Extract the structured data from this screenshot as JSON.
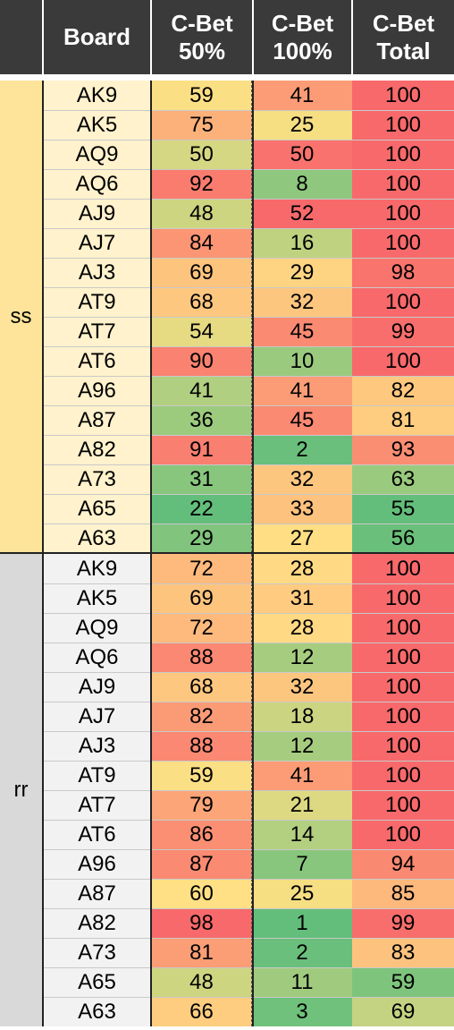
{
  "headers": {
    "group": "",
    "board": "Board",
    "cbet50": [
      "C-Bet",
      "50%"
    ],
    "cbet100": [
      "C-Bet",
      "100%"
    ],
    "cbet_total": [
      "C-Bet",
      "Total"
    ]
  },
  "colors": {
    "header_bg": "#3a3a3a",
    "ss_group_bg": "#fde49a",
    "ss_board_bg": "#fff2cc",
    "rr_group_bg": "#d9d9d9",
    "rr_board_bg": "#f2f2f2",
    "scale_low": "#63be7b",
    "scale_mid": "#ffe084",
    "scale_high": "#f8696b"
  },
  "chart_data": {
    "type": "table",
    "columns": [
      "",
      "Board",
      "C-Bet 50%",
      "C-Bet 100%",
      "C-Bet Total"
    ],
    "groups": [
      {
        "label": "ss",
        "rows": [
          {
            "board": "AK9",
            "cbet50": 59,
            "cbet100": 41,
            "total": 100
          },
          {
            "board": "AK5",
            "cbet50": 75,
            "cbet100": 25,
            "total": 100
          },
          {
            "board": "AQ9",
            "cbet50": 50,
            "cbet100": 50,
            "total": 100
          },
          {
            "board": "AQ6",
            "cbet50": 92,
            "cbet100": 8,
            "total": 100
          },
          {
            "board": "AJ9",
            "cbet50": 48,
            "cbet100": 52,
            "total": 100
          },
          {
            "board": "AJ7",
            "cbet50": 84,
            "cbet100": 16,
            "total": 100
          },
          {
            "board": "AJ3",
            "cbet50": 69,
            "cbet100": 29,
            "total": 98
          },
          {
            "board": "AT9",
            "cbet50": 68,
            "cbet100": 32,
            "total": 100
          },
          {
            "board": "AT7",
            "cbet50": 54,
            "cbet100": 45,
            "total": 99
          },
          {
            "board": "AT6",
            "cbet50": 90,
            "cbet100": 10,
            "total": 100
          },
          {
            "board": "A96",
            "cbet50": 41,
            "cbet100": 41,
            "total": 82
          },
          {
            "board": "A87",
            "cbet50": 36,
            "cbet100": 45,
            "total": 81
          },
          {
            "board": "A82",
            "cbet50": 91,
            "cbet100": 2,
            "total": 93
          },
          {
            "board": "A73",
            "cbet50": 31,
            "cbet100": 32,
            "total": 63
          },
          {
            "board": "A65",
            "cbet50": 22,
            "cbet100": 33,
            "total": 55
          },
          {
            "board": "A63",
            "cbet50": 29,
            "cbet100": 27,
            "total": 56
          }
        ]
      },
      {
        "label": "rr",
        "rows": [
          {
            "board": "AK9",
            "cbet50": 72,
            "cbet100": 28,
            "total": 100
          },
          {
            "board": "AK5",
            "cbet50": 69,
            "cbet100": 31,
            "total": 100
          },
          {
            "board": "AQ9",
            "cbet50": 72,
            "cbet100": 28,
            "total": 100
          },
          {
            "board": "AQ6",
            "cbet50": 88,
            "cbet100": 12,
            "total": 100
          },
          {
            "board": "AJ9",
            "cbet50": 68,
            "cbet100": 32,
            "total": 100
          },
          {
            "board": "AJ7",
            "cbet50": 82,
            "cbet100": 18,
            "total": 100
          },
          {
            "board": "AJ3",
            "cbet50": 88,
            "cbet100": 12,
            "total": 100
          },
          {
            "board": "AT9",
            "cbet50": 59,
            "cbet100": 41,
            "total": 100
          },
          {
            "board": "AT7",
            "cbet50": 79,
            "cbet100": 21,
            "total": 100
          },
          {
            "board": "AT6",
            "cbet50": 86,
            "cbet100": 14,
            "total": 100
          },
          {
            "board": "A96",
            "cbet50": 87,
            "cbet100": 7,
            "total": 94
          },
          {
            "board": "A87",
            "cbet50": 60,
            "cbet100": 25,
            "total": 85
          },
          {
            "board": "A82",
            "cbet50": 98,
            "cbet100": 1,
            "total": 99
          },
          {
            "board": "A73",
            "cbet50": 81,
            "cbet100": 2,
            "total": 83
          },
          {
            "board": "A65",
            "cbet50": 48,
            "cbet100": 11,
            "total": 59
          },
          {
            "board": "A63",
            "cbet50": 66,
            "cbet100": 3,
            "total": 69
          }
        ]
      }
    ]
  }
}
